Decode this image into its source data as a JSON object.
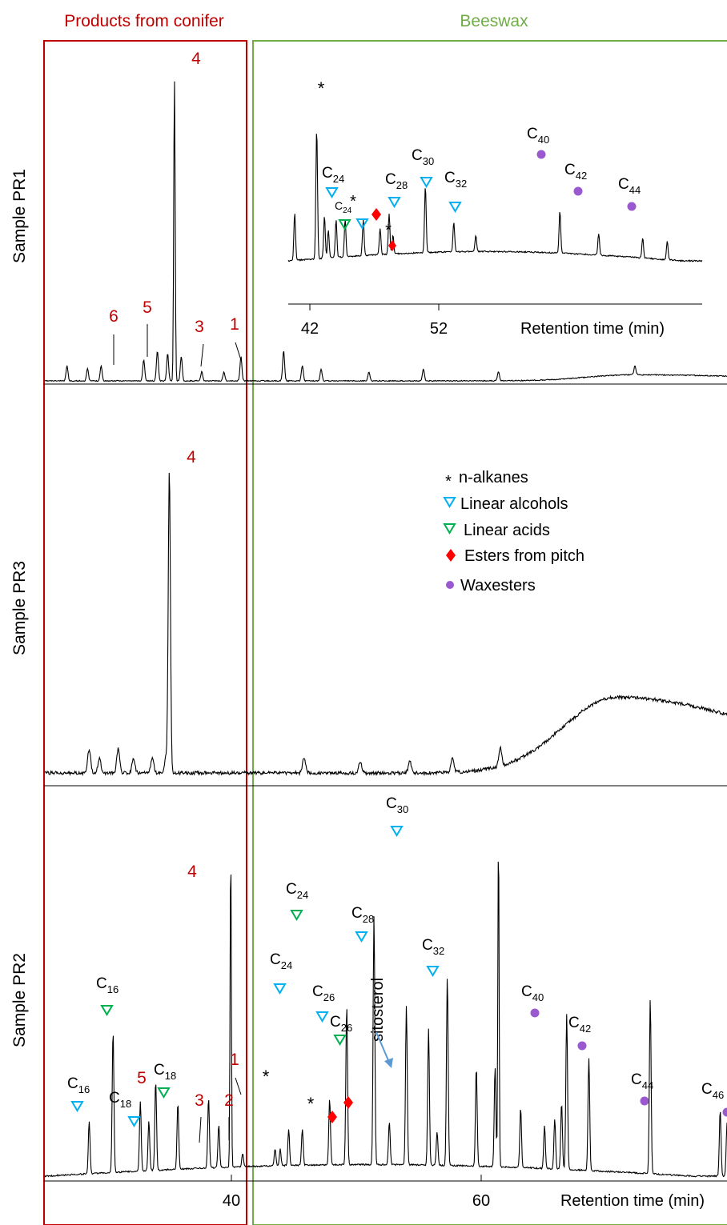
{
  "header": {
    "left_region": "Products from conifer",
    "right_region": "Beeswax"
  },
  "colors": {
    "conifer": "#c00000",
    "beeswax": "#70ad47",
    "alcohol": "#00b0f0",
    "acid": "#00b050",
    "pitch_ester": "#ff0000",
    "waxester": "#9b59d0",
    "trace": "#000000"
  },
  "panels": [
    {
      "id": "PR1",
      "label": "Sample PR1"
    },
    {
      "id": "PR3",
      "label": "Sample PR3"
    },
    {
      "id": "PR2",
      "label": "Sample PR2"
    }
  ],
  "legend": {
    "items": [
      {
        "symbol": "asterisk",
        "label": "n-alkanes"
      },
      {
        "symbol": "triangle-blue",
        "label": "Linear alcohols"
      },
      {
        "symbol": "triangle-green",
        "label": "Linear acids"
      },
      {
        "symbol": "diamond-red",
        "label": "Esters from pitch"
      },
      {
        "symbol": "circle-purple",
        "label": "Waxesters"
      }
    ]
  },
  "chart_data": [
    {
      "type": "line",
      "panel": "Sample PR1",
      "x_range": [
        29,
        69
      ],
      "peaks": [
        {
          "x": 30.3,
          "h": 0.05
        },
        {
          "x": 31.5,
          "h": 0.04
        },
        {
          "x": 32.3,
          "h": 0.05
        },
        {
          "x": 34.8,
          "h": 0.07
        },
        {
          "x": 35.6,
          "h": 0.1
        },
        {
          "x": 36.2,
          "h": 0.09
        },
        {
          "x": 36.6,
          "h": 1.0,
          "label": "4"
        },
        {
          "x": 37.0,
          "h": 0.08
        },
        {
          "x": 38.2,
          "h": 0.03
        },
        {
          "x": 39.5,
          "h": 0.03
        },
        {
          "x": 40.5,
          "h": 0.08
        },
        {
          "x": 43.0,
          "h": 0.1
        },
        {
          "x": 44.1,
          "h": 0.05
        },
        {
          "x": 45.2,
          "h": 0.04
        },
        {
          "x": 48.0,
          "h": 0.03
        },
        {
          "x": 51.2,
          "h": 0.04
        },
        {
          "x": 55.6,
          "h": 0.03
        },
        {
          "x": 63.6,
          "h": 0.03
        }
      ],
      "conifer_labels": [
        "6",
        "5",
        "3",
        "1"
      ],
      "hump": {
        "center": 63.5,
        "width": 7,
        "height": 0.02
      }
    },
    {
      "type": "line",
      "panel": "Sample PR1 inset",
      "xlabel": "Retention time (min)",
      "x_ticks": [
        42,
        52
      ],
      "x_range": [
        40.5,
        72.5
      ],
      "peaks": [
        {
          "x": 41.0,
          "h": 0.3
        },
        {
          "x": 42.7,
          "h": 0.84,
          "marker": "*"
        },
        {
          "x": 43.3,
          "h": 0.27
        },
        {
          "x": 43.6,
          "h": 0.18
        },
        {
          "x": 44.2,
          "h": 0.24
        },
        {
          "x": 44.9,
          "h": 0.24
        },
        {
          "x": 46.3,
          "h": 0.23
        },
        {
          "x": 47.6,
          "h": 0.17
        },
        {
          "x": 48.3,
          "h": 0.26
        },
        {
          "x": 48.6,
          "h": 0.12
        },
        {
          "x": 51.1,
          "h": 0.43
        },
        {
          "x": 53.3,
          "h": 0.19
        },
        {
          "x": 55.0,
          "h": 0.1
        },
        {
          "x": 61.5,
          "h": 0.27
        },
        {
          "x": 64.5,
          "h": 0.14
        },
        {
          "x": 67.9,
          "h": 0.13
        },
        {
          "x": 69.8,
          "h": 0.12
        }
      ],
      "annotations": [
        {
          "x": 43.1,
          "series": "Linear alcohols",
          "carbon": "24"
        },
        {
          "x": 44.2,
          "series": "Linear acids",
          "carbon": "24"
        },
        {
          "x": 45.5,
          "series": "n-alkanes"
        },
        {
          "x": 47.8,
          "series": "Esters from pitch"
        },
        {
          "x": 48.4,
          "series": "Esters from pitch"
        },
        {
          "x": 48.2,
          "series": "n-alkanes"
        },
        {
          "x": 48.8,
          "series": "Linear alcohols",
          "carbon": "28"
        },
        {
          "x": 51.2,
          "series": "Linear alcohols",
          "carbon": "30"
        },
        {
          "x": 53.5,
          "series": "Linear alcohols",
          "carbon": "32"
        },
        {
          "x": 61.6,
          "series": "Waxesters",
          "carbon": "40"
        },
        {
          "x": 64.6,
          "series": "Waxesters",
          "carbon": "42"
        },
        {
          "x": 68.6,
          "series": "Waxesters",
          "carbon": "44"
        }
      ]
    },
    {
      "type": "line",
      "panel": "Sample PR3",
      "x_range": [
        29,
        69
      ],
      "peaks": [
        {
          "x": 31.6,
          "h": 0.08
        },
        {
          "x": 32.2,
          "h": 0.05
        },
        {
          "x": 33.3,
          "h": 0.08
        },
        {
          "x": 34.2,
          "h": 0.05
        },
        {
          "x": 35.3,
          "h": 0.05
        },
        {
          "x": 36.3,
          "h": 1.0,
          "label": "4"
        },
        {
          "x": 36.1,
          "h": 0.05
        },
        {
          "x": 44.2,
          "h": 0.05
        },
        {
          "x": 47.5,
          "h": 0.04
        },
        {
          "x": 50.4,
          "h": 0.04
        },
        {
          "x": 52.9,
          "h": 0.05
        },
        {
          "x": 55.7,
          "h": 0.06
        }
      ],
      "hump": {
        "center": 62.5,
        "width": 8,
        "height": 0.25
      }
    },
    {
      "type": "line",
      "panel": "Sample PR2",
      "xlabel": "Retention time (min)",
      "x_ticks": [
        40,
        60
      ],
      "x_range": [
        29,
        69
      ],
      "peaks": [
        {
          "x": 31.6,
          "h": 0.16
        },
        {
          "x": 33.0,
          "h": 0.43
        },
        {
          "x": 34.6,
          "h": 0.21
        },
        {
          "x": 35.1,
          "h": 0.15
        },
        {
          "x": 35.5,
          "h": 0.27
        },
        {
          "x": 36.8,
          "h": 0.2
        },
        {
          "x": 38.6,
          "h": 0.21
        },
        {
          "x": 39.2,
          "h": 0.13
        },
        {
          "x": 39.9,
          "h": 0.96,
          "label": "4"
        },
        {
          "x": 40.6,
          "h": 0.04
        },
        {
          "x": 42.5,
          "h": 0.05
        },
        {
          "x": 42.8,
          "h": 0.05
        },
        {
          "x": 43.3,
          "h": 0.11
        },
        {
          "x": 44.1,
          "h": 0.11
        },
        {
          "x": 45.7,
          "h": 0.2
        },
        {
          "x": 46.7,
          "h": 0.48
        },
        {
          "x": 48.3,
          "h": 0.75
        },
        {
          "x": 49.2,
          "h": 0.13
        },
        {
          "x": 50.2,
          "h": 0.48
        },
        {
          "x": 51.5,
          "h": 0.41
        },
        {
          "x": 52.0,
          "h": 0.1
        },
        {
          "x": 52.6,
          "h": 0.57
        },
        {
          "x": 54.3,
          "h": 0.3
        },
        {
          "x": 55.4,
          "h": 0.3
        },
        {
          "x": 55.6,
          "h": 1.0
        },
        {
          "x": 56.9,
          "h": 0.18
        },
        {
          "x": 58.3,
          "h": 0.13
        },
        {
          "x": 58.9,
          "h": 0.15
        },
        {
          "x": 59.3,
          "h": 0.2
        },
        {
          "x": 59.6,
          "h": 0.47
        },
        {
          "x": 60.9,
          "h": 0.34
        },
        {
          "x": 64.5,
          "h": 0.53
        },
        {
          "x": 68.6,
          "h": 0.2
        },
        {
          "x": 69.0,
          "h": 0.15
        },
        {
          "x": 69.1,
          "h": 0.1
        }
      ],
      "conifer_labels": [
        "5",
        "3",
        "2",
        "1"
      ],
      "annotations": [
        {
          "x": 31.6,
          "series": "Linear alcohols",
          "carbon": "16"
        },
        {
          "x": 33.0,
          "series": "Linear acids",
          "carbon": "16"
        },
        {
          "x": 35.1,
          "series": "Linear alcohols",
          "carbon": "18"
        },
        {
          "x": 37.2,
          "series": "Linear acids",
          "carbon": "18"
        },
        {
          "x": 45.7,
          "series": "n-alkanes"
        },
        {
          "x": 46.7,
          "series": "Linear alcohols",
          "carbon": "24"
        },
        {
          "x": 48.3,
          "series": "Linear acids",
          "carbon": "24"
        },
        {
          "x": 49.2,
          "series": "n-alkanes"
        },
        {
          "x": 50.0,
          "series": "Esters from pitch"
        },
        {
          "x": 51.2,
          "series": "Esters from pitch"
        },
        {
          "x": 50.2,
          "series": "Linear alcohols",
          "carbon": "26"
        },
        {
          "x": 51.5,
          "series": "Linear acids",
          "carbon": "26"
        },
        {
          "x": 52.6,
          "series": "Linear alcohols",
          "carbon": "28"
        },
        {
          "x": 55.6,
          "series": "Linear alcohols",
          "carbon": "30"
        },
        {
          "x": 58.6,
          "series": "Linear alcohols",
          "carbon": "32"
        },
        {
          "x": 64.5,
          "series": "Waxesters",
          "carbon": "40"
        },
        {
          "x": 68.6,
          "series": "Waxesters",
          "carbon": "42"
        },
        {
          "x": 73.0,
          "series": "Waxesters",
          "carbon": "44"
        },
        {
          "x": 78.0,
          "series": "Waxesters",
          "carbon": "46"
        }
      ],
      "text_annotations": [
        {
          "label": "sitosterol",
          "x": 55.5
        }
      ]
    }
  ]
}
